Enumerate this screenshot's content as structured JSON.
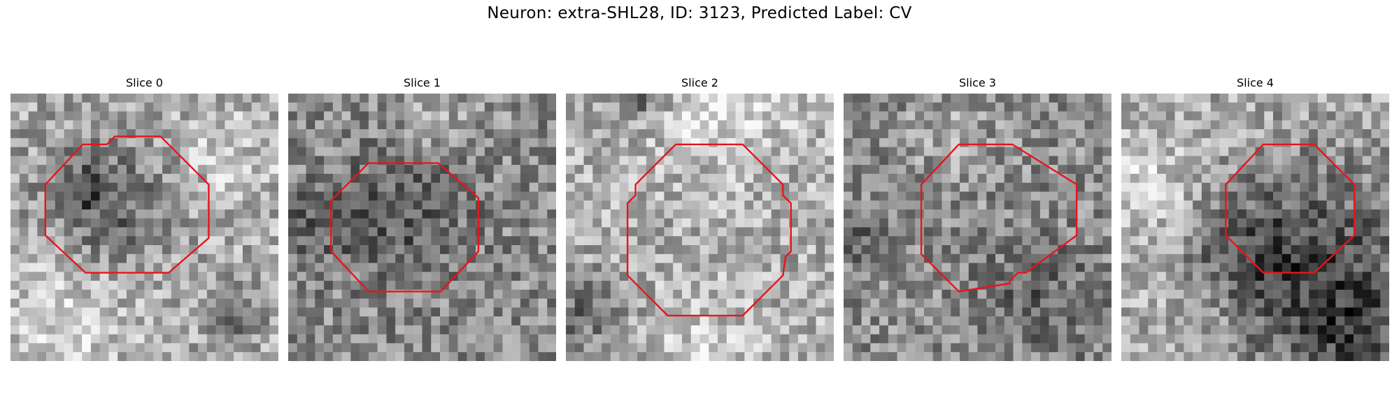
{
  "figure": {
    "title": "Neuron: extra-SHL28, ID: 3123, Predicted Label: CV"
  },
  "grid_size": 30,
  "outline_color": "#e8141c",
  "panels": [
    {
      "title": "Slice 0",
      "seed": 11,
      "base_gray": 170,
      "dark_blobs": [
        [
          0.37,
          0.42,
          0.18,
          70
        ],
        [
          0.85,
          0.82,
          0.06,
          70
        ],
        [
          0.25,
          0.36,
          0.06,
          60
        ]
      ],
      "light_blobs": [
        [
          0.2,
          0.85,
          0.2,
          40
        ],
        [
          0.8,
          0.25,
          0.15,
          30
        ]
      ],
      "outline": [
        [
          0.27,
          0.19
        ],
        [
          0.36,
          0.19
        ],
        [
          0.39,
          0.16
        ],
        [
          0.56,
          0.16
        ],
        [
          0.74,
          0.34
        ],
        [
          0.74,
          0.54
        ],
        [
          0.59,
          0.67
        ],
        [
          0.28,
          0.67
        ],
        [
          0.13,
          0.53
        ],
        [
          0.13,
          0.34
        ]
      ]
    },
    {
      "title": "Slice 1",
      "seed": 23,
      "base_gray": 140,
      "dark_blobs": [
        [
          0.42,
          0.45,
          0.18,
          50
        ],
        [
          0.08,
          0.5,
          0.1,
          40
        ]
      ],
      "light_blobs": [
        [
          0.55,
          0.08,
          0.12,
          30
        ]
      ],
      "outline": [
        [
          0.3,
          0.26
        ],
        [
          0.56,
          0.26
        ],
        [
          0.71,
          0.39
        ],
        [
          0.71,
          0.59
        ],
        [
          0.57,
          0.74
        ],
        [
          0.3,
          0.74
        ],
        [
          0.16,
          0.59
        ],
        [
          0.16,
          0.4
        ]
      ]
    },
    {
      "title": "Slice 2",
      "seed": 37,
      "base_gray": 175,
      "dark_blobs": [
        [
          0.06,
          0.8,
          0.1,
          70
        ],
        [
          0.28,
          0.02,
          0.05,
          90
        ]
      ],
      "light_blobs": [
        [
          0.6,
          0.06,
          0.15,
          50
        ],
        [
          0.5,
          0.95,
          0.12,
          30
        ]
      ],
      "outline": [
        [
          0.41,
          0.19
        ],
        [
          0.66,
          0.19
        ],
        [
          0.81,
          0.34
        ],
        [
          0.81,
          0.38
        ],
        [
          0.84,
          0.41
        ],
        [
          0.84,
          0.59
        ],
        [
          0.82,
          0.61
        ],
        [
          0.81,
          0.68
        ],
        [
          0.66,
          0.83
        ],
        [
          0.38,
          0.83
        ],
        [
          0.23,
          0.68
        ],
        [
          0.23,
          0.41
        ],
        [
          0.26,
          0.38
        ],
        [
          0.26,
          0.34
        ]
      ]
    },
    {
      "title": "Slice 3",
      "seed": 53,
      "base_gray": 140,
      "dark_blobs": [
        [
          0.72,
          0.75,
          0.15,
          40
        ],
        [
          0.06,
          0.55,
          0.08,
          40
        ]
      ],
      "light_blobs": [
        [
          0.4,
          0.15,
          0.12,
          25
        ]
      ],
      "outline": [
        [
          0.43,
          0.19
        ],
        [
          0.63,
          0.19
        ],
        [
          0.87,
          0.34
        ],
        [
          0.87,
          0.53
        ],
        [
          0.68,
          0.67
        ],
        [
          0.65,
          0.67
        ],
        [
          0.62,
          0.7
        ],
        [
          0.62,
          0.71
        ],
        [
          0.43,
          0.74
        ],
        [
          0.29,
          0.6
        ],
        [
          0.29,
          0.34
        ]
      ]
    },
    {
      "title": "Slice 4",
      "seed": 71,
      "base_gray": 170,
      "dark_blobs": [
        [
          0.73,
          0.67,
          0.28,
          95
        ],
        [
          0.88,
          0.92,
          0.12,
          60
        ],
        [
          0.45,
          0.6,
          0.18,
          40
        ]
      ],
      "light_blobs": [
        [
          0.1,
          0.35,
          0.18,
          40
        ],
        [
          0.3,
          0.85,
          0.12,
          30
        ]
      ],
      "outline": [
        [
          0.53,
          0.19
        ],
        [
          0.72,
          0.19
        ],
        [
          0.87,
          0.34
        ],
        [
          0.87,
          0.53
        ],
        [
          0.72,
          0.67
        ],
        [
          0.53,
          0.67
        ],
        [
          0.39,
          0.53
        ],
        [
          0.39,
          0.34
        ]
      ]
    }
  ]
}
